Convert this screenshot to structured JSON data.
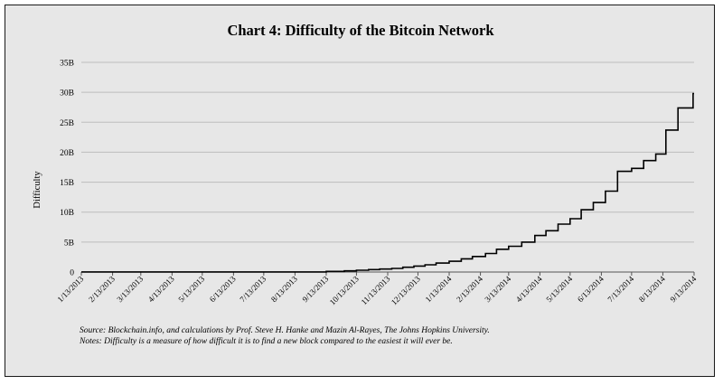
{
  "chart_data": {
    "type": "line",
    "title": "Chart 4: Difficulty of the Bitcoin Network",
    "xlabel": "",
    "ylabel": "Difficulty",
    "ylim": [
      0,
      35
    ],
    "y_ticks": [
      "0",
      "5B",
      "10B",
      "15B",
      "20B",
      "25B",
      "30B",
      "35B"
    ],
    "x_ticks": [
      "1/13/2013",
      "2/13/2013",
      "3/13/2013",
      "4/13/2013",
      "5/13/2013",
      "6/13/2013",
      "7/13/2013",
      "8/13/2013",
      "9/13/2013",
      "10/13/2013",
      "11/13/2013",
      "12/13/2013",
      "1/13/2014",
      "2/13/2014",
      "3/13/2014",
      "4/13/2014",
      "5/13/2014",
      "6/13/2014",
      "7/13/2014",
      "8/13/2014",
      "9/13/2014"
    ],
    "grid": true,
    "legend": "none",
    "line_color": "#000000",
    "series": [
      {
        "name": "",
        "x": [
          "1/13/2013",
          "9/13/2013",
          "10/1/2013",
          "10/13/2013",
          "10/25/2013",
          "11/5/2013",
          "11/17/2013",
          "11/28/2013",
          "12/9/2013",
          "12/20/2013",
          "12/31/2013",
          "1/13/2014",
          "1/25/2014",
          "2/5/2014",
          "2/18/2014",
          "3/1/2014",
          "3/13/2014",
          "3/26/2014",
          "4/8/2014",
          "4/19/2014",
          "5/1/2014",
          "5/13/2014",
          "5/24/2014",
          "6/5/2014",
          "6/17/2014",
          "6/29/2014",
          "7/13/2014",
          "7/25/2014",
          "8/6/2014",
          "8/16/2014",
          "8/28/2014",
          "9/12/2014"
        ],
        "y": [
          0.02,
          0.1,
          0.2,
          0.3,
          0.4,
          0.5,
          0.6,
          0.8,
          1.0,
          1.2,
          1.5,
          1.8,
          2.2,
          2.6,
          3.1,
          3.8,
          4.3,
          5.0,
          6.1,
          6.9,
          8.0,
          8.9,
          10.4,
          11.6,
          13.5,
          16.8,
          17.3,
          18.6,
          19.7,
          23.7,
          27.4,
          29.8
        ]
      }
    ]
  },
  "source_note": "Source: Blockchain.info, and calculations by Prof. Steve H. Hanke and Mazin Al-Rayes, The Johns Hopkins University.",
  "difficulty_note": "Notes: Difficulty is a measure of how difficult it is to find a new block compared to the easiest it will ever be."
}
